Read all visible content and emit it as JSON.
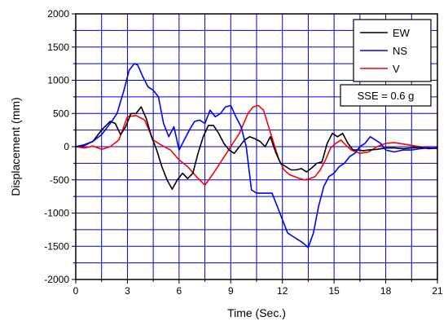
{
  "chart_data": {
    "type": "line",
    "xlabel": "Time (Sec.)",
    "ylabel": "Displacement (mm)",
    "xlim": [
      0,
      21
    ],
    "ylim": [
      -2000,
      2000
    ],
    "xticks": [
      0,
      3,
      6,
      9,
      12,
      15,
      18,
      21
    ],
    "yticks": [
      -2000,
      -1500,
      -1000,
      -500,
      0,
      500,
      1000,
      1500,
      2000
    ],
    "grid": true,
    "grid_color": "#0000cc",
    "legend_position": "top-right",
    "annotation": "SSE = 0.6 g",
    "series": [
      {
        "name": "EW",
        "color": "#000000",
        "x": [
          0,
          0.5,
          1.0,
          1.5,
          2.0,
          2.3,
          2.6,
          2.9,
          3.2,
          3.5,
          3.8,
          4.1,
          4.4,
          4.7,
          5.0,
          5.3,
          5.6,
          5.9,
          6.2,
          6.5,
          6.8,
          7.1,
          7.4,
          7.7,
          8.0,
          8.3,
          8.6,
          8.9,
          9.2,
          9.5,
          9.8,
          10.1,
          10.4,
          10.7,
          11.0,
          11.3,
          11.6,
          11.9,
          12.2,
          12.5,
          12.8,
          13.1,
          13.4,
          13.7,
          14.0,
          14.3,
          14.6,
          14.9,
          15.2,
          15.5,
          15.8,
          16.1,
          16.4,
          16.7,
          17.0,
          17.5,
          18.0,
          18.5,
          19.0,
          19.5,
          20.0,
          20.5,
          21.0
        ],
        "values": [
          0,
          20,
          80,
          250,
          380,
          350,
          180,
          300,
          500,
          500,
          600,
          420,
          150,
          -50,
          -300,
          -500,
          -640,
          -500,
          -400,
          -480,
          -400,
          -100,
          150,
          320,
          320,
          200,
          50,
          -50,
          -100,
          0,
          100,
          150,
          120,
          80,
          0,
          150,
          -80,
          -250,
          -300,
          -350,
          -350,
          -330,
          -380,
          -320,
          -250,
          -230,
          50,
          200,
          150,
          200,
          50,
          -50,
          -50,
          -60,
          -50,
          -40,
          -20,
          -20,
          -30,
          -20,
          -10,
          -30,
          -20
        ]
      },
      {
        "name": "NS",
        "color": "#0000ff",
        "x": [
          0,
          0.5,
          1.0,
          1.5,
          2.0,
          2.4,
          2.8,
          3.1,
          3.4,
          3.6,
          3.9,
          4.2,
          4.5,
          4.8,
          5.1,
          5.4,
          5.7,
          6.0,
          6.3,
          6.6,
          6.9,
          7.2,
          7.5,
          7.8,
          8.1,
          8.4,
          8.7,
          9.0,
          9.3,
          9.6,
          9.9,
          10.2,
          10.5,
          10.8,
          11.1,
          11.4,
          11.7,
          12.0,
          12.3,
          12.6,
          12.9,
          13.2,
          13.5,
          13.8,
          14.1,
          14.4,
          14.7,
          15.0,
          15.3,
          15.6,
          15.9,
          16.2,
          16.5,
          16.8,
          17.1,
          17.4,
          17.7,
          18.0,
          18.5,
          19.0,
          19.5,
          20.0,
          20.5,
          21.0
        ],
        "values": [
          0,
          30,
          80,
          180,
          350,
          500,
          850,
          1150,
          1250,
          1230,
          1050,
          900,
          850,
          750,
          350,
          150,
          300,
          -50,
          100,
          250,
          380,
          400,
          350,
          550,
          450,
          500,
          600,
          620,
          450,
          300,
          0,
          -650,
          -700,
          -700,
          -700,
          -700,
          -900,
          -1100,
          -1300,
          -1350,
          -1400,
          -1450,
          -1520,
          -1300,
          -900,
          -600,
          -450,
          -400,
          -300,
          -250,
          -150,
          -100,
          0,
          50,
          150,
          100,
          50,
          -50,
          -80,
          -50,
          -50,
          -30,
          -20,
          -20
        ]
      },
      {
        "name": "V",
        "color": "#ff0000",
        "x": [
          0,
          0.5,
          1.0,
          1.5,
          2.0,
          2.5,
          3.0,
          3.5,
          4.0,
          4.5,
          5.0,
          5.5,
          6.0,
          6.5,
          7.0,
          7.5,
          8.0,
          8.5,
          9.0,
          9.5,
          10.0,
          10.3,
          10.6,
          10.9,
          11.2,
          11.5,
          11.8,
          12.1,
          12.4,
          12.7,
          13.0,
          13.3,
          13.6,
          13.9,
          14.2,
          14.5,
          14.8,
          15.1,
          15.4,
          15.7,
          16.0,
          16.5,
          17.0,
          17.5,
          18.0,
          18.5,
          19.0,
          19.5,
          20.0,
          20.5,
          21.0
        ],
        "values": [
          0,
          -20,
          10,
          -40,
          0,
          100,
          450,
          470,
          400,
          100,
          20,
          -50,
          -200,
          -300,
          -450,
          -580,
          -400,
          -200,
          0,
          200,
          500,
          600,
          620,
          550,
          300,
          50,
          -200,
          -350,
          -420,
          -450,
          -480,
          -500,
          -480,
          -450,
          -350,
          -200,
          -20,
          50,
          100,
          20,
          -50,
          -100,
          -80,
          0,
          50,
          60,
          40,
          20,
          0,
          -20,
          -30
        ]
      }
    ]
  }
}
